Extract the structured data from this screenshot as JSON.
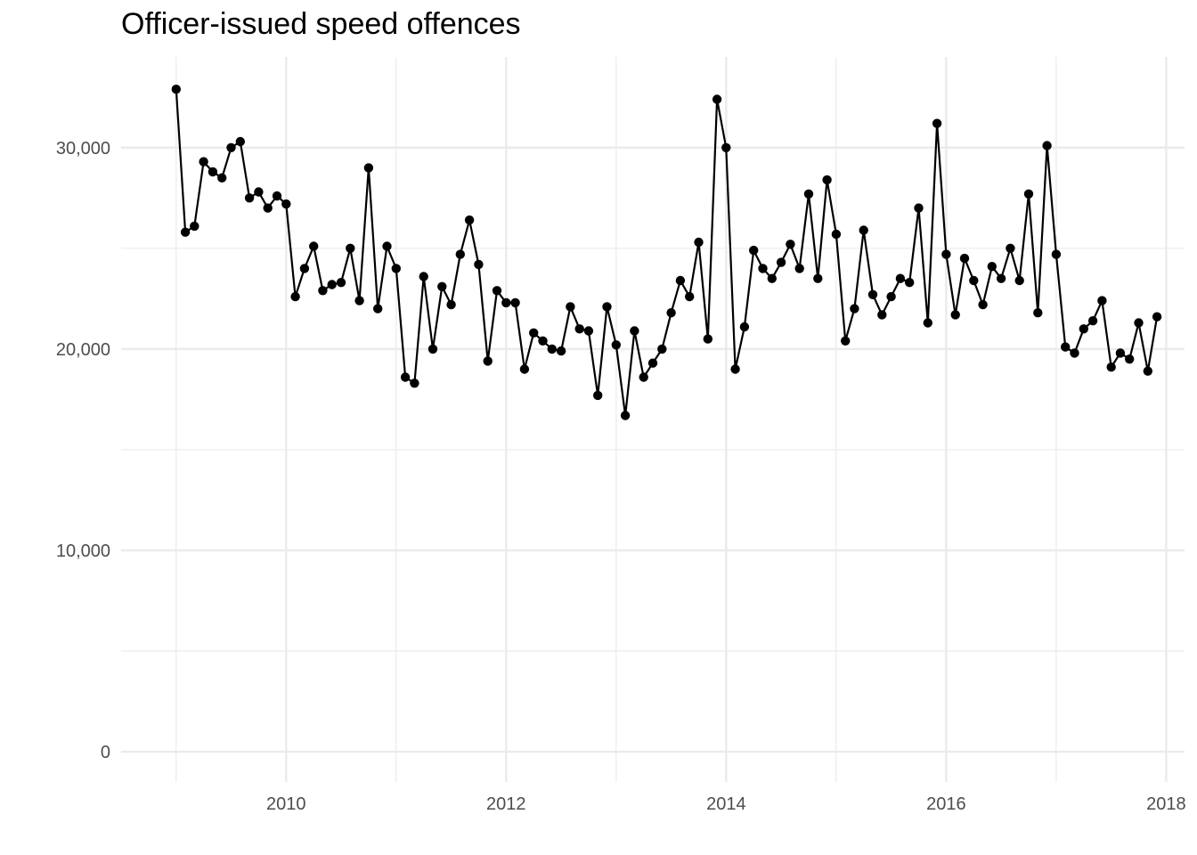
{
  "chart_data": {
    "type": "line",
    "title": "Officer-issued speed offences",
    "xlabel": "",
    "ylabel": "",
    "xlim": [
      "2008-07-01",
      "2018-03-01"
    ],
    "ylim": [
      -1500,
      34500
    ],
    "x_ticks": [
      {
        "date": "2010-01-01",
        "label": "2010"
      },
      {
        "date": "2012-01-01",
        "label": "2012"
      },
      {
        "date": "2014-01-01",
        "label": "2014"
      },
      {
        "date": "2016-01-01",
        "label": "2016"
      },
      {
        "date": "2018-01-01",
        "label": "2018"
      }
    ],
    "y_ticks": [
      {
        "value": 0,
        "label": "0"
      },
      {
        "value": 10000,
        "label": "10,000"
      },
      {
        "value": 20000,
        "label": "20,000"
      },
      {
        "value": 30000,
        "label": "30,000"
      }
    ],
    "grid": true,
    "colors": {
      "line": "#000000",
      "grid": "#ebebeb",
      "text": "#4d4d4d"
    },
    "x": [
      "2009-01",
      "2009-02",
      "2009-03",
      "2009-04",
      "2009-05",
      "2009-06",
      "2009-07",
      "2009-08",
      "2009-09",
      "2009-10",
      "2009-11",
      "2009-12",
      "2010-01",
      "2010-02",
      "2010-03",
      "2010-04",
      "2010-05",
      "2010-06",
      "2010-07",
      "2010-08",
      "2010-09",
      "2010-10",
      "2010-11",
      "2010-12",
      "2011-01",
      "2011-02",
      "2011-03",
      "2011-04",
      "2011-05",
      "2011-06",
      "2011-07",
      "2011-08",
      "2011-09",
      "2011-10",
      "2011-11",
      "2011-12",
      "2012-01",
      "2012-02",
      "2012-03",
      "2012-04",
      "2012-05",
      "2012-06",
      "2012-07",
      "2012-08",
      "2012-09",
      "2012-10",
      "2012-11",
      "2012-12",
      "2013-01",
      "2013-02",
      "2013-03",
      "2013-04",
      "2013-05",
      "2013-06",
      "2013-07",
      "2013-08",
      "2013-09",
      "2013-10",
      "2013-11",
      "2013-12",
      "2014-01",
      "2014-02",
      "2014-03",
      "2014-04",
      "2014-05",
      "2014-06",
      "2014-07",
      "2014-08",
      "2014-09",
      "2014-10",
      "2014-11",
      "2014-12",
      "2015-01",
      "2015-02",
      "2015-03",
      "2015-04",
      "2015-05",
      "2015-06",
      "2015-07",
      "2015-08",
      "2015-09",
      "2015-10",
      "2015-11",
      "2015-12",
      "2016-01",
      "2016-02",
      "2016-03",
      "2016-04",
      "2016-05",
      "2016-06",
      "2016-07",
      "2016-08",
      "2016-09",
      "2016-10",
      "2016-11",
      "2016-12",
      "2017-01",
      "2017-02",
      "2017-03",
      "2017-04",
      "2017-05",
      "2017-06",
      "2017-07",
      "2017-08",
      "2017-09",
      "2017-10",
      "2017-11",
      "2017-12"
    ],
    "series": [
      {
        "values": [
          32900,
          25800,
          26100,
          29300,
          28800,
          28500,
          30000,
          30300,
          27500,
          27800,
          27000,
          27600,
          27200,
          22600,
          24000,
          25100,
          22900,
          23200,
          23300,
          25000,
          22400,
          29000,
          22000,
          25100,
          24000,
          18600,
          18300,
          23600,
          20000,
          23100,
          22200,
          24700,
          26400,
          24200,
          19400,
          22900,
          22300,
          22300,
          19000,
          20800,
          20400,
          20000,
          19900,
          22100,
          21000,
          20900,
          17700,
          22100,
          20200,
          16700,
          20900,
          18600,
          19300,
          20000,
          21800,
          23400,
          22600,
          25300,
          20500,
          32400,
          30000,
          19000,
          21100,
          24900,
          24000,
          23500,
          24300,
          25200,
          24000,
          27700,
          23500,
          28400,
          25700,
          20400,
          22000,
          25900,
          22700,
          21700,
          22600,
          23500,
          23300,
          27000,
          21300,
          31200,
          24700,
          21700,
          24500,
          23400,
          22200,
          24100,
          23500,
          25000,
          23400,
          27700,
          21800,
          30100,
          24700,
          20100,
          19800,
          21000,
          21400,
          22400,
          19100,
          19800,
          19500,
          21300,
          18900,
          21600
        ]
      }
    ]
  }
}
